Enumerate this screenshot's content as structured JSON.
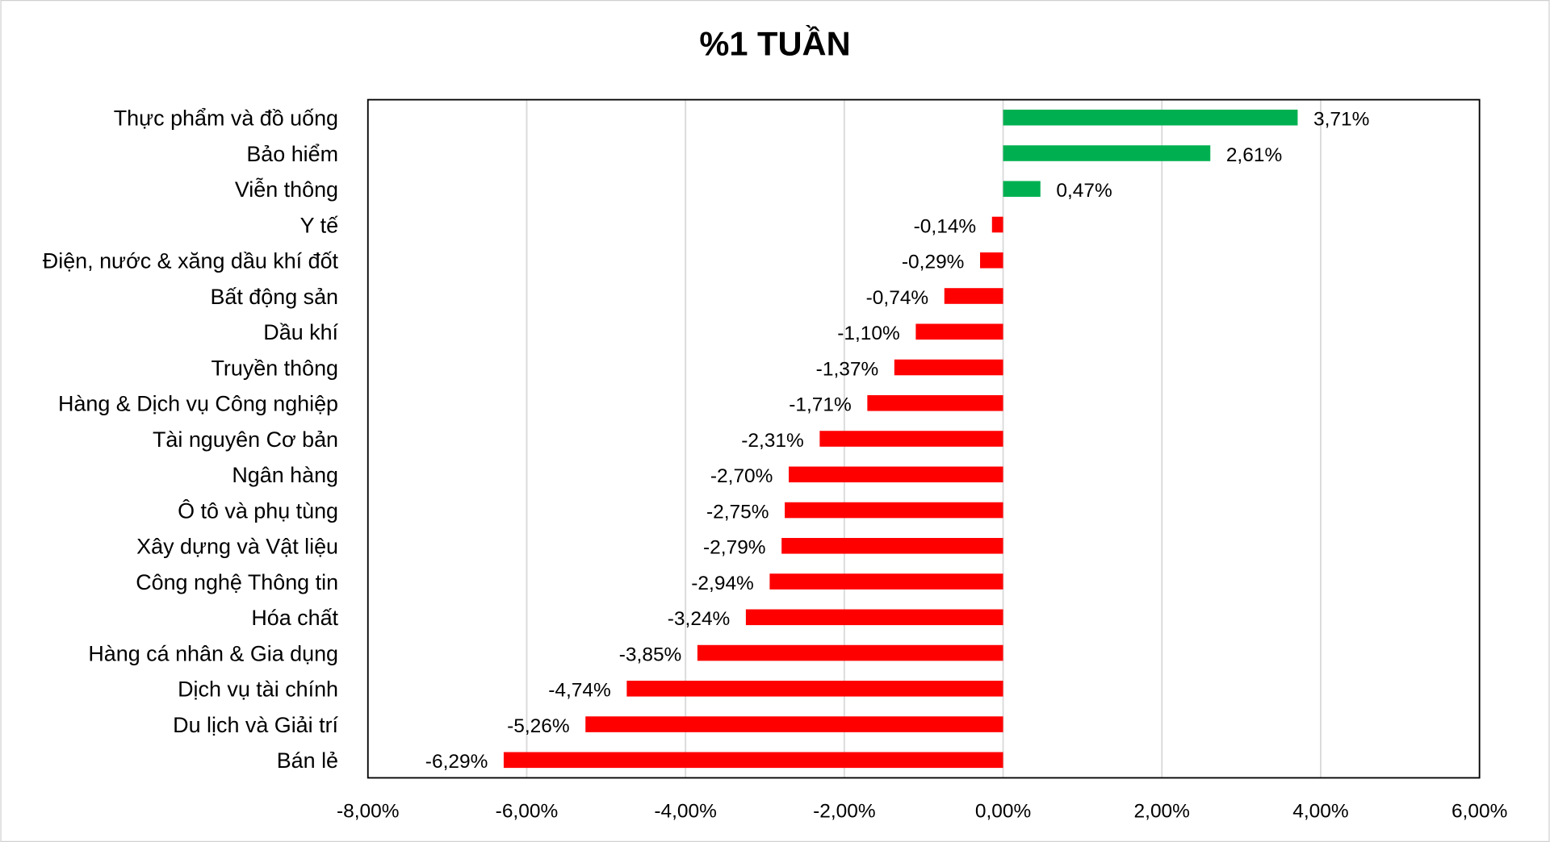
{
  "chart_data": {
    "type": "bar",
    "orientation": "horizontal",
    "title": "%1 TUẦN",
    "xlabel": "",
    "ylabel": "",
    "xlim": [
      -8,
      6
    ],
    "x_ticks": [
      "-8,00%",
      "-6,00%",
      "-4,00%",
      "-2,00%",
      "0,00%",
      "2,00%",
      "4,00%",
      "6,00%"
    ],
    "x_tick_values": [
      -8,
      -6,
      -4,
      -2,
      0,
      2,
      4,
      6
    ],
    "grid": "vertical",
    "legend": "none",
    "colors": {
      "positive": "#00B050",
      "negative": "#FF0000"
    },
    "categories": [
      "Thực phẩm và đồ uống",
      "Bảo hiểm",
      "Viễn thông",
      "Y tế",
      "Điện, nước & xăng dầu khí đốt",
      "Bất động sản",
      "Dầu khí",
      "Truyền thông",
      "Hàng & Dịch vụ Công nghiệp",
      "Tài nguyên Cơ bản",
      "Ngân hàng",
      "Ô tô và phụ tùng",
      "Xây dựng và Vật liệu",
      "Công nghệ Thông tin",
      "Hóa chất",
      "Hàng cá nhân & Gia dụng",
      "Dịch vụ tài chính",
      "Du lịch và Giải trí",
      "Bán lẻ"
    ],
    "values": [
      3.71,
      2.61,
      0.47,
      -0.14,
      -0.29,
      -0.74,
      -1.1,
      -1.37,
      -1.71,
      -2.31,
      -2.7,
      -2.75,
      -2.79,
      -2.94,
      -3.24,
      -3.85,
      -4.74,
      -5.26,
      -6.29
    ],
    "data_labels": [
      "3,71%",
      "2,61%",
      "0,47%",
      "-0,14%",
      "-0,29%",
      "-0,74%",
      "-1,10%",
      "-1,37%",
      "-1,71%",
      "-2,31%",
      "-2,70%",
      "-2,75%",
      "-2,79%",
      "-2,94%",
      "-3,24%",
      "-3,85%",
      "-4,74%",
      "-5,26%",
      "-6,29%"
    ]
  }
}
